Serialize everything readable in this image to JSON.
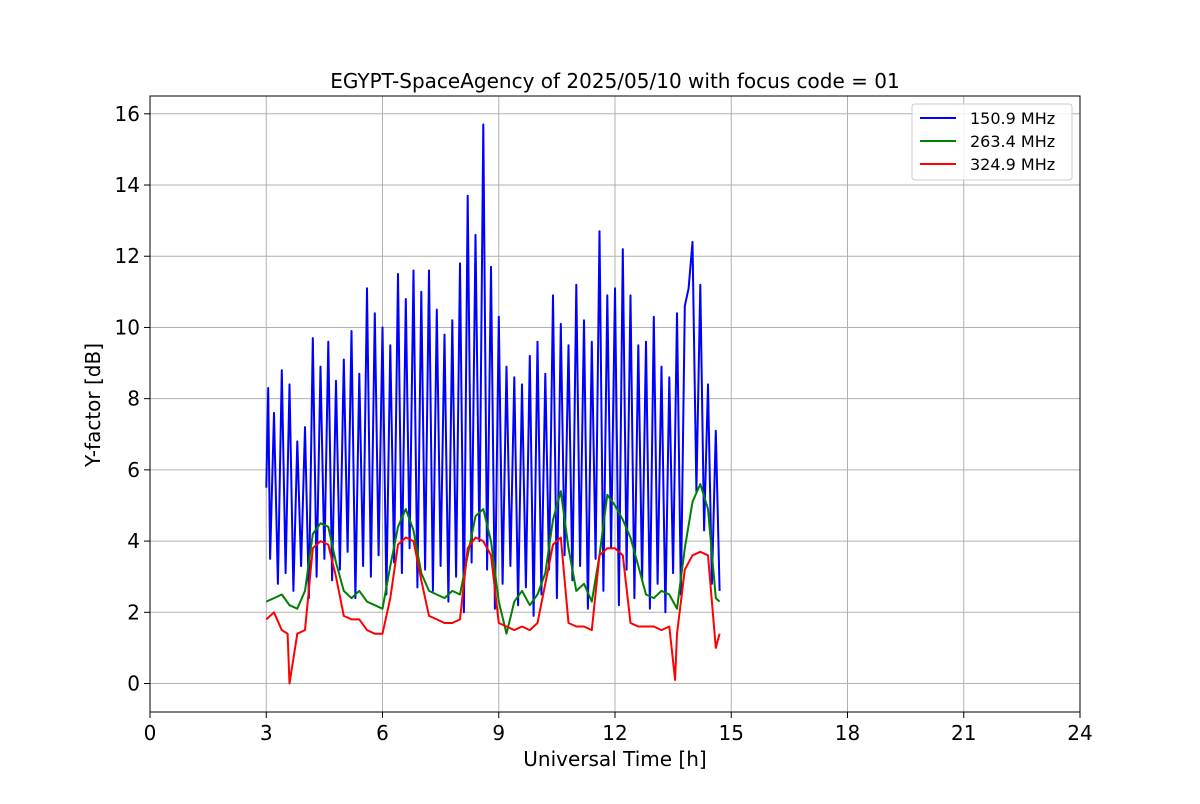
{
  "chart_data": {
    "type": "line",
    "title": "EGYPT-SpaceAgency of 2025/05/10 with focus code = 01",
    "xlabel": "Universal Time [h]",
    "ylabel": "Y-factor [dB]",
    "xlim": [
      0,
      24
    ],
    "ylim": [
      -0.8,
      16.5
    ],
    "x_ticks": [
      0,
      3,
      6,
      9,
      12,
      15,
      18,
      21,
      24
    ],
    "y_ticks": [
      0,
      2,
      4,
      6,
      8,
      10,
      12,
      14,
      16
    ],
    "grid": true,
    "legend_position": "top-right",
    "series": [
      {
        "name": "150.9 MHz",
        "color": "#0000ff",
        "x": [
          3.0,
          3.05,
          3.1,
          3.2,
          3.3,
          3.4,
          3.5,
          3.6,
          3.7,
          3.8,
          3.9,
          4.0,
          4.1,
          4.2,
          4.3,
          4.4,
          4.5,
          4.6,
          4.7,
          4.8,
          4.9,
          5.0,
          5.1,
          5.2,
          5.3,
          5.4,
          5.5,
          5.6,
          5.7,
          5.8,
          5.9,
          6.0,
          6.1,
          6.2,
          6.3,
          6.4,
          6.5,
          6.6,
          6.7,
          6.8,
          6.9,
          7.0,
          7.1,
          7.2,
          7.3,
          7.4,
          7.5,
          7.6,
          7.7,
          7.8,
          7.9,
          8.0,
          8.1,
          8.2,
          8.3,
          8.4,
          8.5,
          8.6,
          8.7,
          8.8,
          8.9,
          9.0,
          9.1,
          9.2,
          9.3,
          9.4,
          9.5,
          9.6,
          9.7,
          9.8,
          9.9,
          10.0,
          10.1,
          10.2,
          10.3,
          10.4,
          10.5,
          10.6,
          10.7,
          10.8,
          10.9,
          11.0,
          11.1,
          11.2,
          11.3,
          11.4,
          11.5,
          11.6,
          11.7,
          11.8,
          11.9,
          12.0,
          12.1,
          12.2,
          12.3,
          12.4,
          12.5,
          12.6,
          12.7,
          12.8,
          12.9,
          13.0,
          13.1,
          13.2,
          13.3,
          13.4,
          13.5,
          13.6,
          13.7,
          13.8,
          13.9,
          14.0,
          14.1,
          14.2,
          14.3,
          14.4,
          14.5,
          14.6,
          14.7
        ],
        "y": [
          5.5,
          8.3,
          3.5,
          7.6,
          2.8,
          8.8,
          3.1,
          8.4,
          2.6,
          6.8,
          3.3,
          7.2,
          2.4,
          9.7,
          3.0,
          8.9,
          3.5,
          9.6,
          2.9,
          8.5,
          3.2,
          9.1,
          3.7,
          9.9,
          2.4,
          8.7,
          3.3,
          11.1,
          3.0,
          10.4,
          3.6,
          10.0,
          2.5,
          9.5,
          3.4,
          11.5,
          3.1,
          10.8,
          3.8,
          11.6,
          2.7,
          11.0,
          3.2,
          11.6,
          2.6,
          10.5,
          3.3,
          9.8,
          2.3,
          10.2,
          3.0,
          11.8,
          2.0,
          13.7,
          3.4,
          12.6,
          4.0,
          15.7,
          3.2,
          11.7,
          2.1,
          10.3,
          2.8,
          8.9,
          3.3,
          8.6,
          2.2,
          8.4,
          2.7,
          9.2,
          1.9,
          9.6,
          2.5,
          8.7,
          3.2,
          10.9,
          2.4,
          10.1,
          3.6,
          9.5,
          2.9,
          11.2,
          3.3,
          10.2,
          2.1,
          9.6,
          3.5,
          12.7,
          2.6,
          10.9,
          3.8,
          11.1,
          2.2,
          12.2,
          3.2,
          10.9,
          2.4,
          9.5,
          2.9,
          9.6,
          2.1,
          10.3,
          2.8,
          8.9,
          2.0,
          8.6,
          3.1,
          10.4,
          2.5,
          10.6,
          11.1,
          12.4,
          5.4,
          11.2,
          4.3,
          8.4,
          2.8,
          7.1,
          2.6
        ]
      },
      {
        "name": "263.4 MHz",
        "color": "#008000",
        "x": [
          3.0,
          3.2,
          3.4,
          3.6,
          3.8,
          4.0,
          4.2,
          4.4,
          4.6,
          4.8,
          5.0,
          5.2,
          5.4,
          5.6,
          5.8,
          6.0,
          6.2,
          6.4,
          6.6,
          6.8,
          7.0,
          7.2,
          7.4,
          7.6,
          7.8,
          8.0,
          8.2,
          8.4,
          8.6,
          8.8,
          9.0,
          9.2,
          9.4,
          9.6,
          9.8,
          10.0,
          10.2,
          10.4,
          10.6,
          10.8,
          11.0,
          11.2,
          11.4,
          11.6,
          11.8,
          12.0,
          12.2,
          12.4,
          12.6,
          12.8,
          13.0,
          13.2,
          13.4,
          13.6,
          13.8,
          14.0,
          14.2,
          14.4,
          14.6,
          14.7
        ],
        "y": [
          2.3,
          2.4,
          2.5,
          2.2,
          2.1,
          2.6,
          4.2,
          4.5,
          4.4,
          3.4,
          2.6,
          2.4,
          2.6,
          2.3,
          2.2,
          2.1,
          3.3,
          4.4,
          4.9,
          4.3,
          3.1,
          2.6,
          2.5,
          2.4,
          2.6,
          2.5,
          3.6,
          4.7,
          4.9,
          4.0,
          2.3,
          1.4,
          2.3,
          2.6,
          2.2,
          2.5,
          3.1,
          4.6,
          5.4,
          3.8,
          2.6,
          2.8,
          2.3,
          3.6,
          5.3,
          5.0,
          4.6,
          4.1,
          3.3,
          2.5,
          2.4,
          2.6,
          2.5,
          2.1,
          3.8,
          5.1,
          5.6,
          4.9,
          2.4,
          2.3
        ]
      },
      {
        "name": "324.9 MHz",
        "color": "#ff0000",
        "x": [
          3.0,
          3.2,
          3.4,
          3.55,
          3.6,
          3.8,
          4.0,
          4.2,
          4.4,
          4.6,
          4.8,
          5.0,
          5.2,
          5.4,
          5.6,
          5.8,
          6.0,
          6.2,
          6.4,
          6.6,
          6.8,
          7.0,
          7.2,
          7.4,
          7.6,
          7.8,
          8.0,
          8.2,
          8.4,
          8.6,
          8.8,
          9.0,
          9.2,
          9.4,
          9.6,
          9.8,
          10.0,
          10.2,
          10.4,
          10.6,
          10.8,
          11.0,
          11.2,
          11.4,
          11.6,
          11.8,
          12.0,
          12.2,
          12.4,
          12.6,
          12.8,
          13.0,
          13.2,
          13.4,
          13.55,
          13.6,
          13.8,
          14.0,
          14.2,
          14.4,
          14.6,
          14.7
        ],
        "y": [
          1.8,
          2.0,
          1.5,
          1.4,
          0.0,
          1.4,
          1.5,
          3.8,
          4.0,
          3.9,
          3.0,
          1.9,
          1.8,
          1.8,
          1.5,
          1.4,
          1.4,
          2.4,
          3.9,
          4.1,
          4.0,
          2.9,
          1.9,
          1.8,
          1.7,
          1.7,
          1.8,
          3.8,
          4.1,
          4.0,
          3.6,
          1.7,
          1.6,
          1.5,
          1.6,
          1.5,
          1.7,
          2.8,
          3.9,
          4.1,
          1.7,
          1.6,
          1.6,
          1.5,
          3.6,
          3.8,
          3.8,
          3.6,
          1.7,
          1.6,
          1.6,
          1.6,
          1.5,
          1.6,
          0.1,
          1.4,
          3.2,
          3.6,
          3.7,
          3.6,
          1.0,
          1.4
        ]
      }
    ]
  }
}
